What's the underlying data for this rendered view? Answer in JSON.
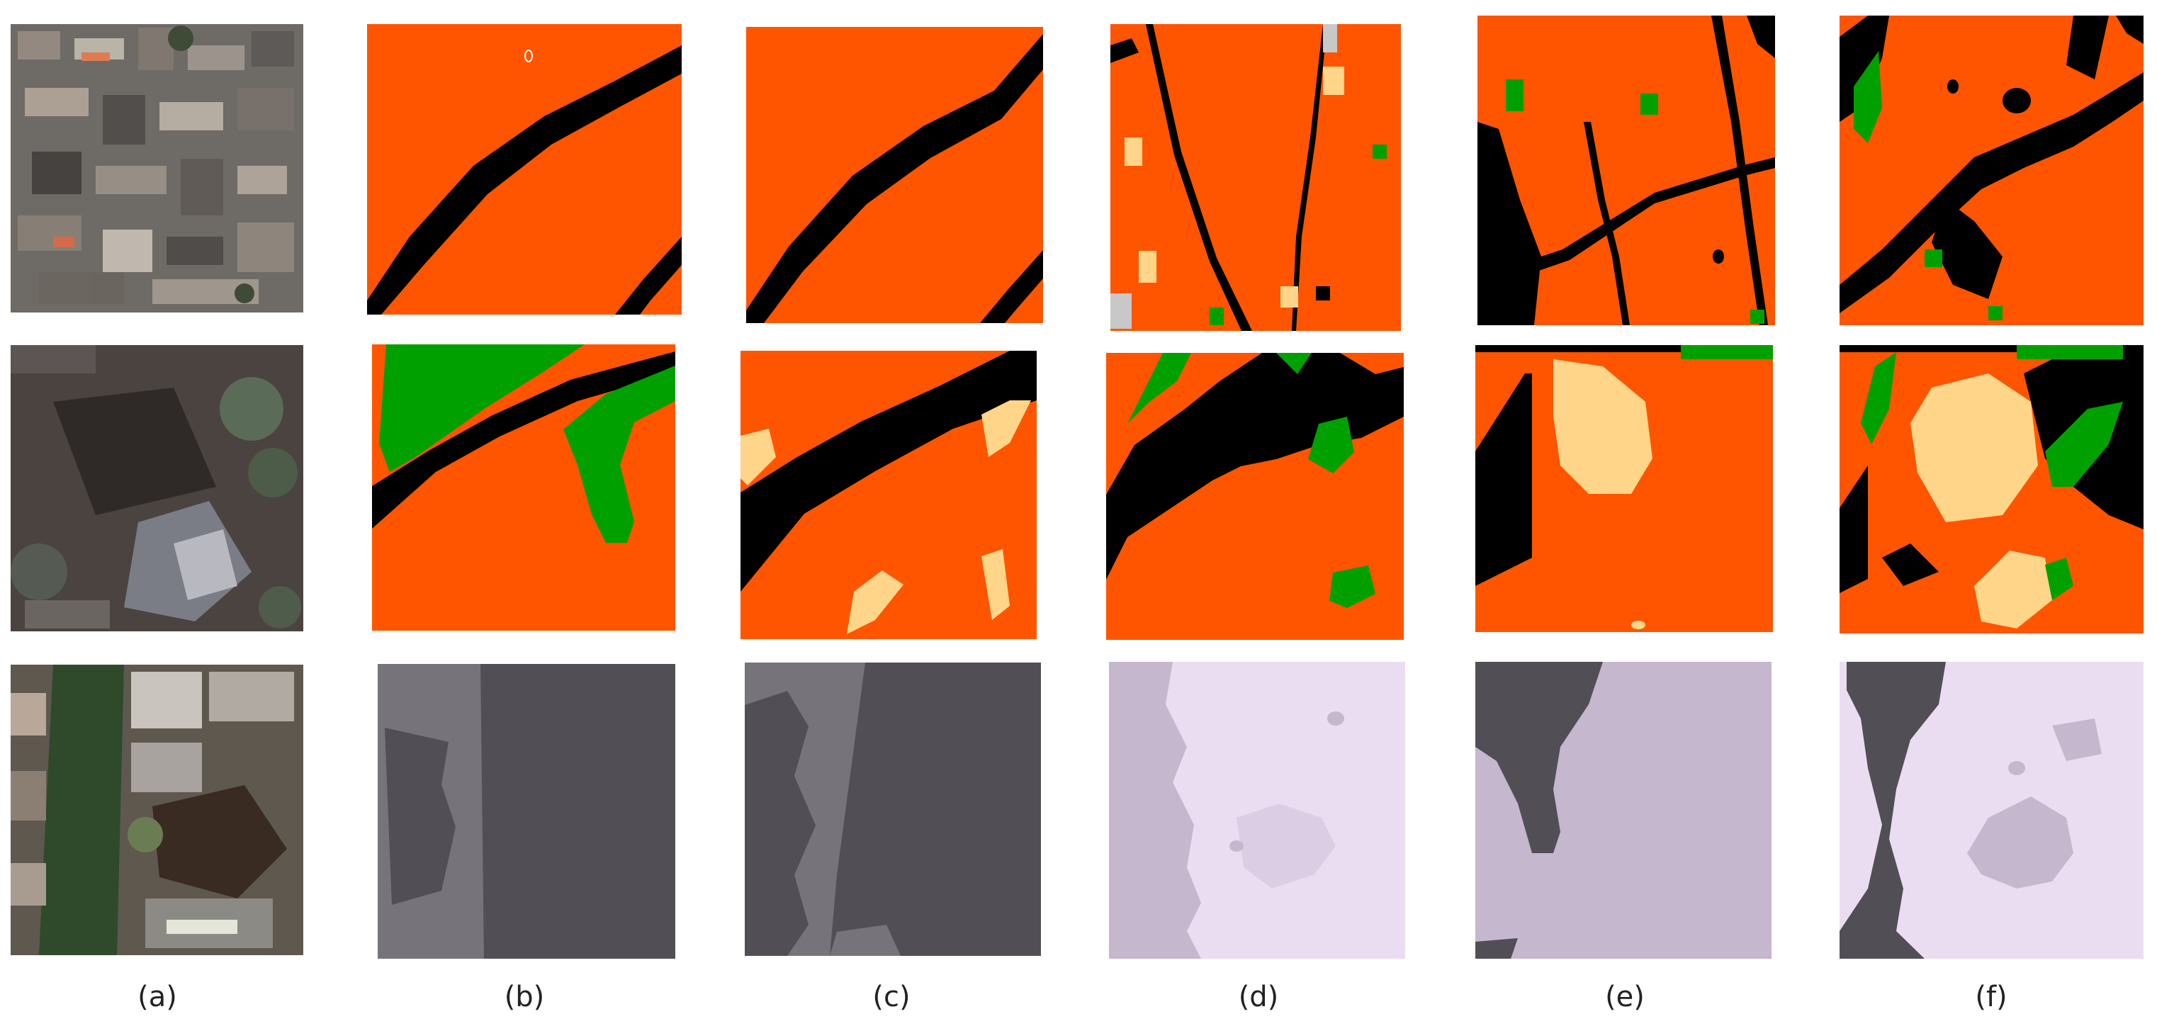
{
  "figure": {
    "column_labels": [
      "(a)",
      "(b)",
      "(c)",
      "(d)",
      "(e)",
      "(f)"
    ],
    "rows": [
      {
        "row": 1,
        "content": "aerial-urban-image and land-cover segmentation maps (orange background, black roads, green and tan patches)"
      },
      {
        "row": 2,
        "content": "aerial-vegetated-image and land-cover segmentation maps (orange, black, green, tan regions)"
      },
      {
        "row": 3,
        "content": "aerial-tree-lined-image and grayscale/lavender region maps"
      }
    ],
    "colors": {
      "class_orange": "#FF5500",
      "class_black": "#000000",
      "class_green": "#00A000",
      "class_tan": "#FFD58A",
      "class_gray": "#C8C8C8",
      "dark_slate": "#514E56",
      "mid_slate": "#77737A",
      "lavender_light": "#EBDDF1",
      "lavender_mid": "#C5B7CE"
    }
  }
}
